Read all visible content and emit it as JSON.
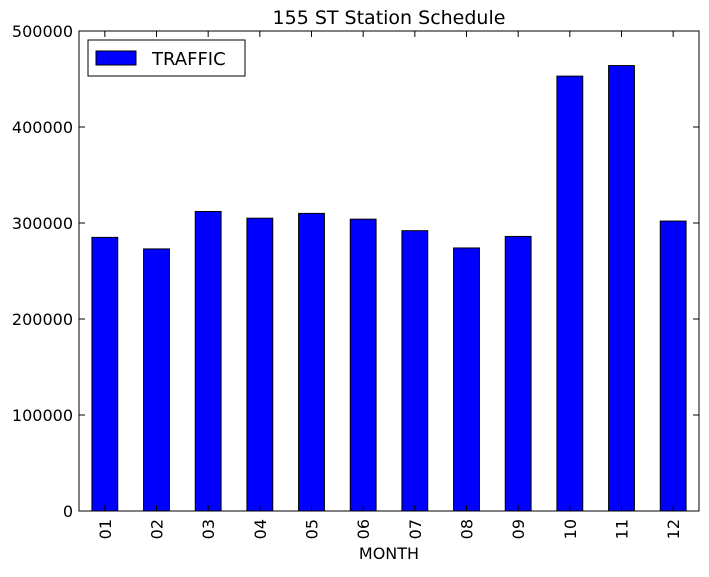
{
  "chart_data": {
    "type": "bar",
    "title": "155 ST Station Schedule",
    "xlabel": "MONTH",
    "ylabel": "",
    "categories": [
      "01",
      "02",
      "03",
      "04",
      "05",
      "06",
      "07",
      "08",
      "09",
      "10",
      "11",
      "12"
    ],
    "series": [
      {
        "name": "TRAFFIC",
        "values": [
          285000,
          273000,
          312000,
          305000,
          310000,
          304000,
          292000,
          274000,
          286000,
          453000,
          464000,
          302000
        ],
        "color": "#0000ff"
      }
    ],
    "ylim": [
      0,
      500000
    ],
    "yticks": [
      0,
      100000,
      200000,
      300000,
      400000,
      500000
    ],
    "ytick_labels": [
      "0",
      "100000",
      "200000",
      "300000",
      "400000",
      "500000"
    ],
    "legend_position": "top-left",
    "grid": false
  }
}
